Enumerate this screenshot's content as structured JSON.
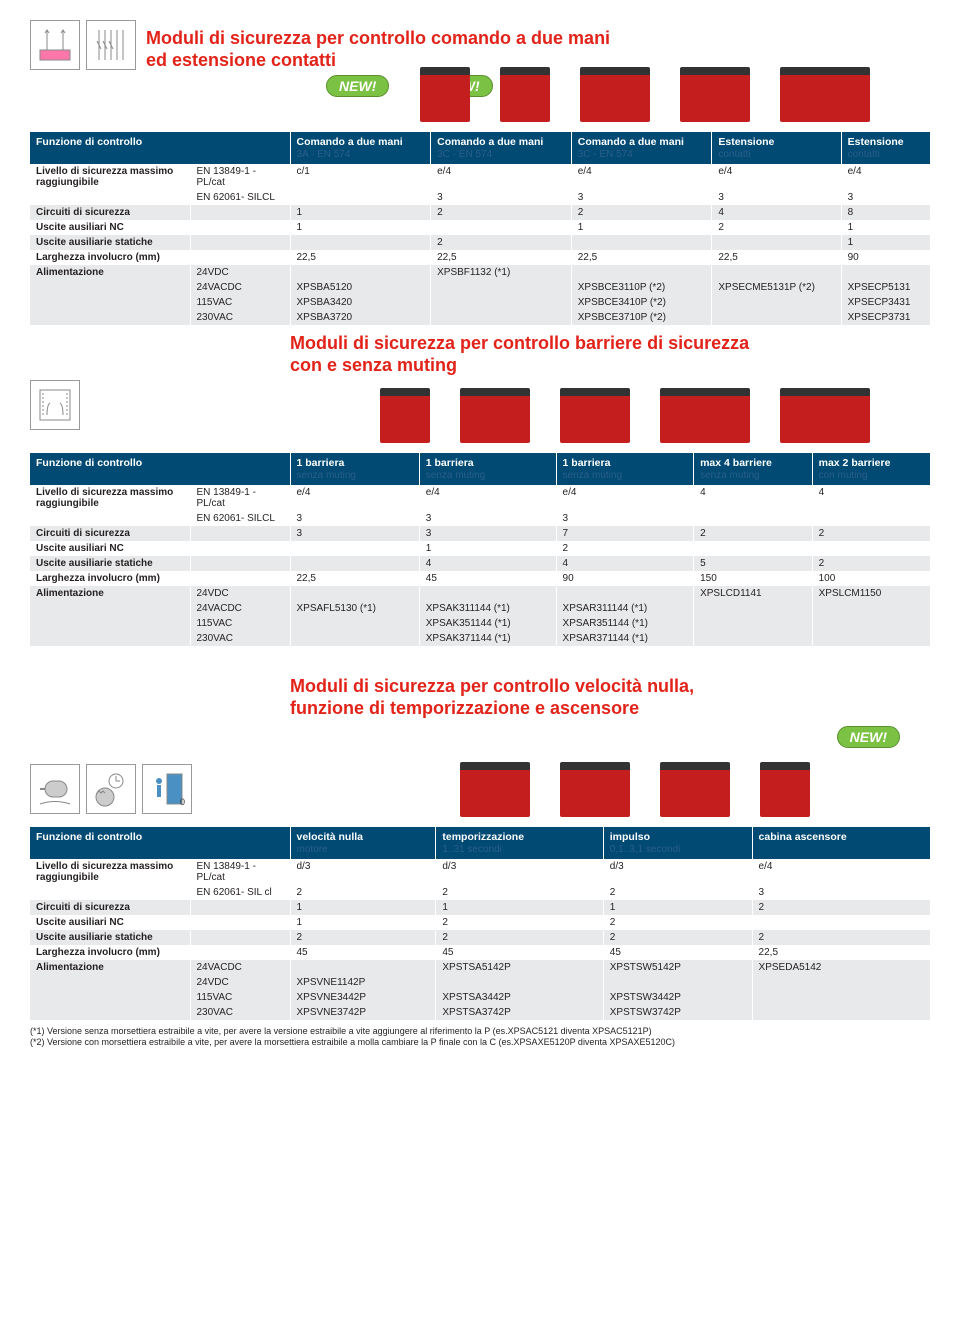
{
  "section1": {
    "title_l1": "Moduli di sicurezza per controllo comando a due mani",
    "title_l2": "ed estensione contatti",
    "new_badge": "NEW!",
    "subtitle_l1": "Moduli di sicurezza per controllo barriere di sicurezza",
    "subtitle_l2": "con e senza muting",
    "headers": [
      "Funzione di controllo",
      "Comando a due mani 3A - EN 574",
      "Comando a due mani 3C - EN 574",
      "Comando a due mani 3C - EN 574",
      "Estensione contatti",
      "Estensione contatti"
    ],
    "rows": [
      {
        "label": "Livello di sicurezza massimo raggiungibile",
        "sub": "EN 13849-1 - PL/cat",
        "vals": [
          "c/1",
          "e/4",
          "e/4",
          "e/4",
          "e/4"
        ]
      },
      {
        "label": "",
        "sub": "EN 62061- SILCL",
        "vals": [
          "",
          "3",
          "3",
          "3",
          "3"
        ]
      },
      {
        "label": "Circuiti di sicurezza",
        "sub": "",
        "vals": [
          "1",
          "2",
          "2",
          "4",
          "8"
        ]
      },
      {
        "label": "Uscite ausiliari NC",
        "sub": "",
        "vals": [
          "1",
          "",
          "1",
          "2",
          "1"
        ]
      },
      {
        "label": "Uscite ausiliarie statiche",
        "sub": "",
        "vals": [
          "",
          "2",
          "",
          "",
          "1"
        ]
      },
      {
        "label": "Larghezza involucro (mm)",
        "sub": "",
        "vals": [
          "22,5",
          "22,5",
          "22,5",
          "22,5",
          "90"
        ]
      },
      {
        "label": "Alimentazione",
        "sub": "24VDC",
        "vals": [
          "",
          "XPSBF1132 (*1)",
          "",
          "",
          ""
        ]
      },
      {
        "label": "",
        "sub": "24VACDC",
        "vals": [
          "XPSBA5120",
          "",
          "XPSBCE3110P (*2)",
          "XPSECME5131P (*2)",
          "XPSECP5131"
        ]
      },
      {
        "label": "",
        "sub": "115VAC",
        "vals": [
          "XPSBA3420",
          "",
          "XPSBCE3410P (*2)",
          "",
          "XPSECP3431"
        ]
      },
      {
        "label": "",
        "sub": "230VAC",
        "vals": [
          "XPSBA3720",
          "",
          "XPSBCE3710P (*2)",
          "",
          "XPSECP3731"
        ]
      }
    ]
  },
  "section2": {
    "headers": [
      "Funzione di controllo",
      "1 barriera senza muting",
      "1 barriera senza muting",
      "1 barriera senza muting",
      "max 4 barriere senza muting",
      "max 2 barriere con muting"
    ],
    "rows": [
      {
        "label": "Livello di sicurezza massimo raggiungibile",
        "sub": "EN 13849-1 - PL/cat",
        "vals": [
          "e/4",
          "e/4",
          "e/4",
          "4",
          "4"
        ]
      },
      {
        "label": "",
        "sub": "EN 62061- SILCL",
        "vals": [
          "3",
          "3",
          "3",
          "",
          ""
        ]
      },
      {
        "label": "Circuiti di sicurezza",
        "sub": "",
        "vals": [
          "3",
          "3",
          "7",
          "2",
          "2"
        ]
      },
      {
        "label": "Uscite ausiliari NC",
        "sub": "",
        "vals": [
          "",
          "1",
          "2",
          "",
          ""
        ]
      },
      {
        "label": "Uscite ausiliarie statiche",
        "sub": "",
        "vals": [
          "",
          "4",
          "4",
          "5",
          "2"
        ]
      },
      {
        "label": "Larghezza involucro (mm)",
        "sub": "",
        "vals": [
          "22,5",
          "45",
          "90",
          "150",
          "100"
        ]
      },
      {
        "label": "Alimentazione",
        "sub": "24VDC",
        "vals": [
          "",
          "",
          "",
          "XPSLCD1141",
          "XPSLCM1150"
        ]
      },
      {
        "label": "",
        "sub": "24VACDC",
        "vals": [
          "XPSAFL5130 (*1)",
          "XPSAK311144 (*1)",
          "XPSAR311144 (*1)",
          "",
          ""
        ]
      },
      {
        "label": "",
        "sub": "115VAC",
        "vals": [
          "",
          "XPSAK351144 (*1)",
          "XPSAR351144 (*1)",
          "",
          ""
        ]
      },
      {
        "label": "",
        "sub": "230VAC",
        "vals": [
          "",
          "XPSAK371144 (*1)",
          "XPSAR371144 (*1)",
          "",
          ""
        ]
      }
    ]
  },
  "section3": {
    "title_l1": "Moduli di sicurezza per controllo velocità nulla,",
    "title_l2": "funzione di temporizzazione e ascensore",
    "new_badge": "NEW!",
    "headers": [
      "Funzione di controllo",
      "velocità nulla motore",
      "temporizzazione 1..31 secondi",
      "impulso 0,1..3,1 secondi",
      "cabina ascensore"
    ],
    "rows": [
      {
        "label": "Livello di sicurezza massimo raggiungibile",
        "sub": "EN 13849-1 - PL/cat",
        "vals": [
          "d/3",
          "d/3",
          "d/3",
          "e/4"
        ]
      },
      {
        "label": "",
        "sub": "EN 62061- SIL cl",
        "vals": [
          "2",
          "2",
          "2",
          "3"
        ]
      },
      {
        "label": "Circuiti di sicurezza",
        "sub": "",
        "vals": [
          "1",
          "1",
          "1",
          "2"
        ]
      },
      {
        "label": "Uscite ausiliari NC",
        "sub": "",
        "vals": [
          "1",
          "2",
          "2",
          ""
        ]
      },
      {
        "label": "Uscite ausiliarie statiche",
        "sub": "",
        "vals": [
          "2",
          "2",
          "2",
          "2"
        ]
      },
      {
        "label": "Larghezza involucro (mm)",
        "sub": "",
        "vals": [
          "45",
          "45",
          "45",
          "22,5"
        ]
      },
      {
        "label": "Alimentazione",
        "sub": "24VACDC",
        "vals": [
          "",
          "XPSTSA5142P",
          "XPSTSW5142P",
          "XPSEDA5142"
        ]
      },
      {
        "label": "",
        "sub": "24VDC",
        "vals": [
          "XPSVNE1142P",
          "",
          "",
          ""
        ]
      },
      {
        "label": "",
        "sub": "115VAC",
        "vals": [
          "XPSVNE3442P",
          "XPSTSA3442P",
          "XPSTSW3442P",
          ""
        ]
      },
      {
        "label": "",
        "sub": "230VAC",
        "vals": [
          "XPSVNE3742P",
          "XPSTSA3742P",
          "XPSTSW3742P",
          ""
        ]
      }
    ]
  },
  "footnotes": {
    "f1": "(*1) Versione senza morsettiera estraibile a vite, per avere la versione estraibile a vite aggiungere al riferimento la P (es.XPSAC5121 diventa XPSAC5121P)",
    "f2": "(*2) Versione con morsettiera estraibile a vite, per avere la morsettiera estraibile a molla cambiare la P finale con la C (es.XPSAXE5120P diventa XPSAXE5120C)"
  }
}
